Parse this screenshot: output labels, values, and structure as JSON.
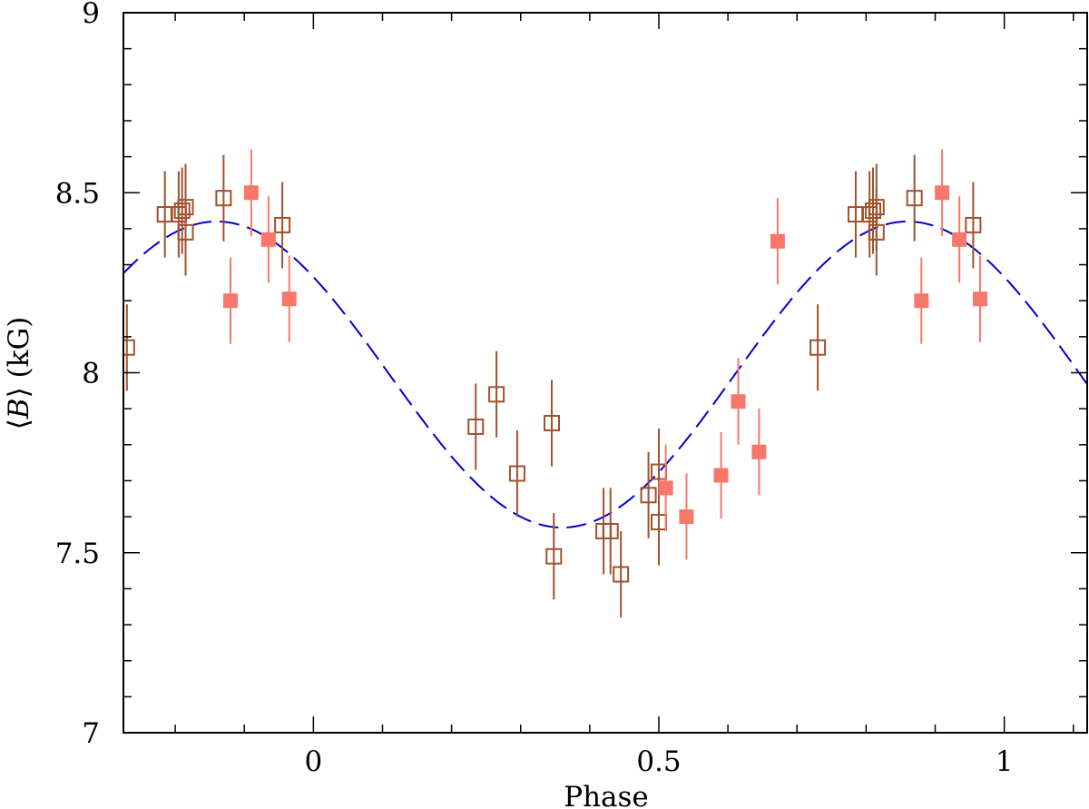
{
  "chart_data": {
    "type": "scatter",
    "title": "",
    "xlabel": "Phase",
    "ylabel": "⟨B⟩ (kG)",
    "ylabel_parts": {
      "left": "⟨",
      "var": "B",
      "right": "⟩",
      "unit": "(kG)"
    },
    "xlim": [
      -0.275,
      1.12
    ],
    "ylim": [
      7,
      9
    ],
    "x_ticks": [
      {
        "value": 0,
        "label": "0"
      },
      {
        "value": 0.5,
        "label": "0.5"
      },
      {
        "value": 1,
        "label": "1"
      }
    ],
    "y_ticks": [
      {
        "value": 7,
        "label": "7"
      },
      {
        "value": 7.5,
        "label": "7.5"
      },
      {
        "value": 8,
        "label": "8"
      },
      {
        "value": 8.5,
        "label": "8.5"
      },
      {
        "value": 9,
        "label": "9"
      }
    ],
    "x_minor_step": 0.1,
    "y_minor_step": 0.1,
    "grid": false,
    "model_curve": {
      "name": "fit",
      "style": "dashed",
      "color": "#0000cc",
      "mean": 7.995,
      "amplitude": 0.425,
      "max_phase": -0.14,
      "period": 1
    },
    "series": [
      {
        "name": "open squares",
        "marker": "open-square",
        "color": "#a0522d",
        "points": [
          {
            "x": -0.27,
            "y": 8.07,
            "err": 0.12
          },
          {
            "x": -0.215,
            "y": 8.44,
            "err": 0.12
          },
          {
            "x": -0.195,
            "y": 8.44,
            "err": 0.12
          },
          {
            "x": -0.19,
            "y": 8.45,
            "err": 0.12
          },
          {
            "x": -0.185,
            "y": 8.39,
            "err": 0.12
          },
          {
            "x": -0.185,
            "y": 8.46,
            "err": 0.12
          },
          {
            "x": -0.13,
            "y": 8.485,
            "err": 0.12
          },
          {
            "x": -0.045,
            "y": 8.41,
            "err": 0.12
          },
          {
            "x": 0.235,
            "y": 7.85,
            "err": 0.12
          },
          {
            "x": 0.265,
            "y": 7.94,
            "err": 0.12
          },
          {
            "x": 0.295,
            "y": 7.72,
            "err": 0.12
          },
          {
            "x": 0.345,
            "y": 7.86,
            "err": 0.12
          },
          {
            "x": 0.348,
            "y": 7.49,
            "err": 0.12
          },
          {
            "x": 0.42,
            "y": 7.56,
            "err": 0.12
          },
          {
            "x": 0.43,
            "y": 7.56,
            "err": 0.12
          },
          {
            "x": 0.445,
            "y": 7.44,
            "err": 0.12
          },
          {
            "x": 0.485,
            "y": 7.66,
            "err": 0.12
          },
          {
            "x": 0.5,
            "y": 7.585,
            "err": 0.12
          },
          {
            "x": 0.5,
            "y": 7.725,
            "err": 0.12
          },
          {
            "x": 0.73,
            "y": 8.07,
            "err": 0.12
          },
          {
            "x": 0.785,
            "y": 8.44,
            "err": 0.12
          },
          {
            "x": 0.805,
            "y": 8.44,
            "err": 0.12
          },
          {
            "x": 0.81,
            "y": 8.45,
            "err": 0.12
          },
          {
            "x": 0.815,
            "y": 8.39,
            "err": 0.12
          },
          {
            "x": 0.815,
            "y": 8.46,
            "err": 0.12
          },
          {
            "x": 0.87,
            "y": 8.485,
            "err": 0.12
          },
          {
            "x": 0.955,
            "y": 8.41,
            "err": 0.12
          }
        ]
      },
      {
        "name": "filled squares",
        "marker": "filled-square",
        "color": "#f8776b",
        "points": [
          {
            "x": -0.12,
            "y": 8.2,
            "err": 0.12
          },
          {
            "x": -0.09,
            "y": 8.5,
            "err": 0.12
          },
          {
            "x": -0.065,
            "y": 8.37,
            "err": 0.12
          },
          {
            "x": -0.035,
            "y": 8.205,
            "err": 0.12
          },
          {
            "x": 0.51,
            "y": 7.68,
            "err": 0.12
          },
          {
            "x": 0.54,
            "y": 7.6,
            "err": 0.12
          },
          {
            "x": 0.59,
            "y": 7.715,
            "err": 0.12
          },
          {
            "x": 0.615,
            "y": 7.92,
            "err": 0.12
          },
          {
            "x": 0.645,
            "y": 7.78,
            "err": 0.12
          },
          {
            "x": 0.672,
            "y": 8.365,
            "err": 0.12
          },
          {
            "x": 0.88,
            "y": 8.2,
            "err": 0.12
          },
          {
            "x": 0.91,
            "y": 8.5,
            "err": 0.12
          },
          {
            "x": 0.935,
            "y": 8.37,
            "err": 0.12
          },
          {
            "x": 0.965,
            "y": 8.205,
            "err": 0.12
          }
        ]
      }
    ]
  }
}
